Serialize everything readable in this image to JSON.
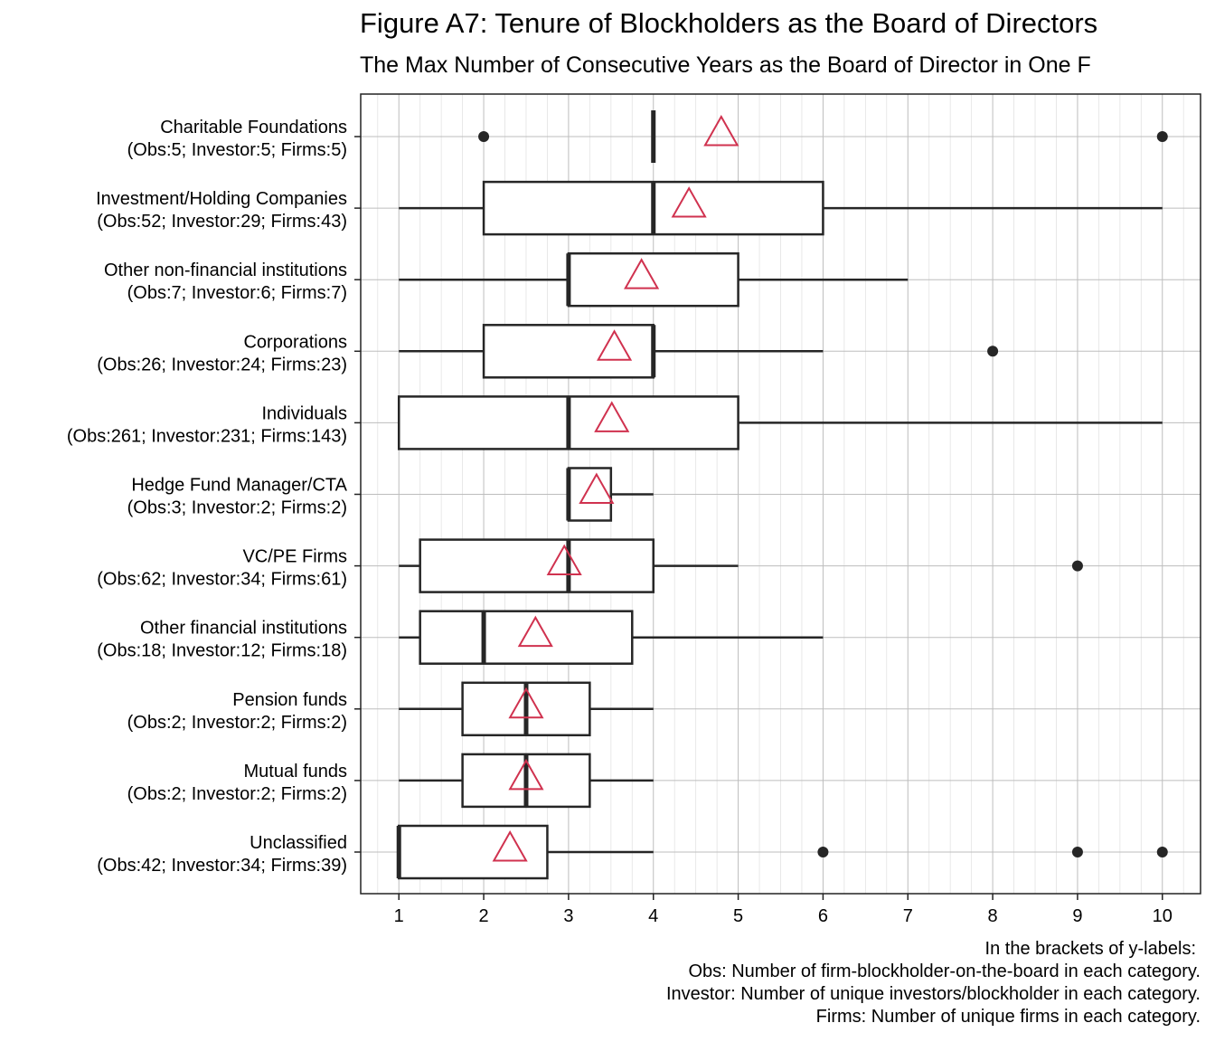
{
  "chart_data": {
    "type": "box",
    "title": "Figure A7: Tenure of Blockholders as the Board of Directors",
    "subtitle": "The Max Number of Consecutive Years as the Board of Director in One F",
    "xlim": [
      0.55,
      10.45
    ],
    "xticks": [
      1,
      2,
      3,
      4,
      5,
      6,
      7,
      8,
      9,
      10
    ],
    "grid": true,
    "colors": {
      "box": "#262626",
      "mean_marker": "#d0324f",
      "grid": "#c8c8c8",
      "outlier": "#262626"
    },
    "mean_marker_shape": "open-triangle",
    "categories": [
      {
        "line1": "Charitable Foundations",
        "line2": "(Obs:5; Investor:5; Firms:5)",
        "whisker_low": null,
        "q1": 4,
        "median": 4,
        "q3": 4,
        "whisker_high": null,
        "mean": 4.8,
        "outliers": [
          2,
          10
        ]
      },
      {
        "line1": "Investment/Holding Companies",
        "line2": "(Obs:52; Investor:29; Firms:43)",
        "whisker_low": 1,
        "q1": 2,
        "median": 4,
        "q3": 6,
        "whisker_high": 10,
        "mean": 4.42,
        "outliers": []
      },
      {
        "line1": "Other non-financial institutions",
        "line2": "(Obs:7; Investor:6; Firms:7)",
        "whisker_low": 1,
        "q1": 3,
        "median": 3,
        "q3": 5,
        "whisker_high": 7,
        "mean": 3.86,
        "outliers": []
      },
      {
        "line1": "Corporations",
        "line2": "(Obs:26; Investor:24; Firms:23)",
        "whisker_low": 1,
        "q1": 2,
        "median": 4,
        "q3": 4,
        "whisker_high": 6,
        "mean": 3.54,
        "outliers": [
          8
        ]
      },
      {
        "line1": "Individuals",
        "line2": "(Obs:261; Investor:231; Firms:143)",
        "whisker_low": 1,
        "q1": 1,
        "median": 3,
        "q3": 5,
        "whisker_high": 10,
        "mean": 3.51,
        "outliers": []
      },
      {
        "line1": "Hedge Fund Manager/CTA",
        "line2": "(Obs:3; Investor:2; Firms:2)",
        "whisker_low": 3,
        "q1": 3,
        "median": 3,
        "q3": 3.5,
        "whisker_high": 4,
        "mean": 3.33,
        "outliers": []
      },
      {
        "line1": "VC/PE Firms",
        "line2": "(Obs:62; Investor:34; Firms:61)",
        "whisker_low": 1,
        "q1": 1.25,
        "median": 3,
        "q3": 4,
        "whisker_high": 5,
        "mean": 2.95,
        "outliers": [
          9
        ]
      },
      {
        "line1": "Other financial institutions",
        "line2": "(Obs:18; Investor:12; Firms:18)",
        "whisker_low": 1,
        "q1": 1.25,
        "median": 2,
        "q3": 3.75,
        "whisker_high": 6,
        "mean": 2.61,
        "outliers": []
      },
      {
        "line1": "Pension funds",
        "line2": "(Obs:2; Investor:2; Firms:2)",
        "whisker_low": 1,
        "q1": 1.75,
        "median": 2.5,
        "q3": 3.25,
        "whisker_high": 4,
        "mean": 2.5,
        "outliers": []
      },
      {
        "line1": "Mutual funds",
        "line2": "(Obs:2; Investor:2; Firms:2)",
        "whisker_low": 1,
        "q1": 1.75,
        "median": 2.5,
        "q3": 3.25,
        "whisker_high": 4,
        "mean": 2.5,
        "outliers": []
      },
      {
        "line1": "Unclassified",
        "line2": "(Obs:42; Investor:34; Firms:39)",
        "whisker_low": 1,
        "q1": 1,
        "median": 1,
        "q3": 2.75,
        "whisker_high": 4,
        "mean": 2.31,
        "outliers": [
          6,
          9,
          10
        ]
      }
    ],
    "caption": [
      "In the brackets of y-labels:",
      "Obs: Number of firm-blockholder-on-the-board in each category.",
      "Investor: Number of unique investors/blockholder in each category.",
      "Firms: Number of unique firms in each category."
    ]
  }
}
